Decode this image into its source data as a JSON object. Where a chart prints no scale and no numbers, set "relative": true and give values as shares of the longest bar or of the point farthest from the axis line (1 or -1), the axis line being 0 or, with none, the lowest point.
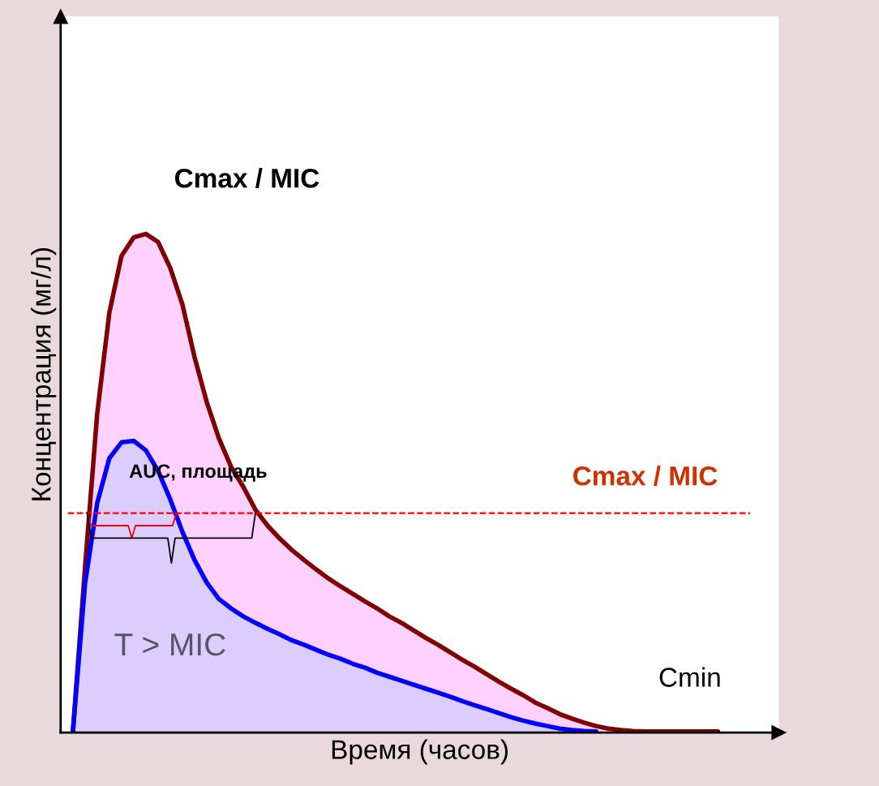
{
  "chart_data": {
    "type": "area",
    "relative": true,
    "xlabel": "Время (часов)",
    "ylabel": "Концентрация (мг/л)",
    "categories": [
      null,
      null,
      null,
      null,
      null,
      null,
      null,
      null,
      null,
      null,
      null,
      null,
      null,
      null,
      null,
      null,
      null,
      null,
      null,
      null,
      null,
      null,
      null,
      null,
      null,
      null,
      null,
      null,
      null,
      null,
      null,
      null,
      null,
      null,
      null,
      null,
      null,
      null,
      null,
      null,
      null,
      null,
      null,
      null,
      null,
      null,
      null,
      null,
      null,
      null,
      null,
      null,
      null,
      null
    ],
    "series": [
      {
        "color": "#800000",
        "values": [
          0,
          0.33,
          0.639,
          0.842,
          0.956,
          0.993,
          1,
          0.984,
          0.932,
          0.859,
          0.753,
          0.663,
          0.59,
          0.533,
          0.493,
          0.447,
          0.415,
          0.389,
          0.366,
          0.346,
          0.327,
          0.309,
          0.293,
          0.278,
          0.263,
          0.249,
          0.233,
          0.22,
          0.205,
          0.19,
          0.176,
          0.161,
          0.146,
          0.132,
          0.117,
          0.102,
          0.088,
          0.075,
          0.06,
          0.049,
          0.037,
          0.028,
          0.02,
          0.013,
          0.008,
          0.005,
          0.003,
          0.002,
          0.002,
          0.002,
          0.002,
          0.002,
          0.002,
          0.002
        ]
      },
      {
        "color": "#0000ff",
        "values": [
          0,
          0.298,
          0.46,
          0.55,
          0.582,
          0.585,
          0.566,
          0.525,
          0.468,
          0.403,
          0.346,
          0.301,
          0.268,
          0.249,
          0.233,
          0.22,
          0.208,
          0.197,
          0.185,
          0.176,
          0.166,
          0.156,
          0.148,
          0.138,
          0.13,
          0.12,
          0.112,
          0.104,
          0.096,
          0.088,
          0.08,
          0.072,
          0.063,
          0.055,
          0.047,
          0.039,
          0.031,
          0.024,
          0.018,
          0.013,
          0.008,
          0.005,
          0.003,
          0.002,
          null,
          null,
          null,
          null,
          null,
          null,
          null,
          null,
          null,
          null
        ]
      }
    ],
    "ref_lines": [
      {
        "axis": "y",
        "value": 0.44,
        "label": "Cmax / MIC",
        "color": "#ff0000",
        "line_style": "dashed"
      }
    ],
    "annotations": [
      "Cmax / MIC",
      "AUC, площадь",
      "T > MIC",
      "Cmin"
    ],
    "grid": false,
    "tick_labels": false
  }
}
